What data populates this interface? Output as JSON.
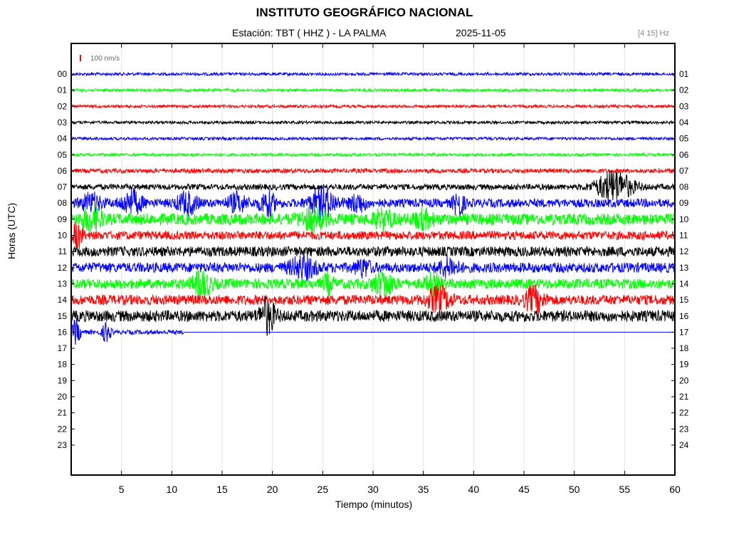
{
  "title": "INSTITUTO GEOGRÁFICO NACIONAL",
  "subtitle_station": "Estación:  TBT ( HHZ ) - LA PALMA",
  "subtitle_date": "2025-11-05",
  "filter_band": "[4 15] Hz",
  "scale_label": "100 nm/s",
  "chart_data": {
    "type": "line",
    "title": "INSTITUTO GEOGRÁFICO NACIONAL",
    "xlabel": "Tiempo (minutos)",
    "ylabel": "Horas (UTC)",
    "xlim": [
      0,
      60
    ],
    "x_ticks": [
      "5",
      "10",
      "15",
      "20",
      "25",
      "30",
      "35",
      "40",
      "45",
      "50",
      "55",
      "60"
    ],
    "y_ticks_left": [
      "00",
      "01",
      "02",
      "03",
      "04",
      "05",
      "06",
      "07",
      "08",
      "09",
      "10",
      "11",
      "12",
      "13",
      "14",
      "15",
      "16",
      "17",
      "18",
      "19",
      "20",
      "21",
      "22",
      "23"
    ],
    "y_ticks_right": [
      "01",
      "02",
      "03",
      "04",
      "05",
      "06",
      "07",
      "08",
      "09",
      "10",
      "11",
      "12",
      "13",
      "14",
      "15",
      "16",
      "17",
      "18",
      "19",
      "20",
      "21",
      "22",
      "23",
      "24"
    ],
    "grid": true,
    "color_cycle": [
      "#0000ff",
      "#00ff00",
      "#ff0000",
      "#000000"
    ],
    "scale_color": "#ff0000",
    "traces": [
      {
        "hour": "00",
        "color": "#0000ff",
        "noise": 2,
        "end_min": 60,
        "bursts": []
      },
      {
        "hour": "01",
        "color": "#00ff00",
        "noise": 2,
        "end_min": 60,
        "bursts": []
      },
      {
        "hour": "02",
        "color": "#ff0000",
        "noise": 2,
        "end_min": 60,
        "bursts": []
      },
      {
        "hour": "03",
        "color": "#000000",
        "noise": 2,
        "end_min": 60,
        "bursts": []
      },
      {
        "hour": "04",
        "color": "#0000ff",
        "noise": 2,
        "end_min": 60,
        "bursts": []
      },
      {
        "hour": "05",
        "color": "#00ff00",
        "noise": 2,
        "end_min": 60,
        "bursts": []
      },
      {
        "hour": "06",
        "color": "#ff0000",
        "noise": 3,
        "end_min": 60,
        "bursts": []
      },
      {
        "hour": "07",
        "color": "#000000",
        "noise": 4,
        "end_min": 60,
        "bursts": [
          {
            "t": 54,
            "amp": 22,
            "width": 3.5
          }
        ]
      },
      {
        "hour": "08",
        "color": "#0000ff",
        "noise": 6,
        "end_min": 60,
        "bursts": [
          {
            "t": 2,
            "amp": 12,
            "width": 2
          },
          {
            "t": 6,
            "amp": 16,
            "width": 2
          },
          {
            "t": 11.5,
            "amp": 14,
            "width": 2
          },
          {
            "t": 16.5,
            "amp": 12,
            "width": 1.8
          },
          {
            "t": 19.5,
            "amp": 16,
            "width": 1.5
          },
          {
            "t": 25,
            "amp": 20,
            "width": 2.5
          },
          {
            "t": 28.5,
            "amp": 12,
            "width": 1.5
          },
          {
            "t": 38.5,
            "amp": 18,
            "width": 1
          }
        ]
      },
      {
        "hour": "09",
        "color": "#00ff00",
        "noise": 8,
        "end_min": 60,
        "bursts": [
          {
            "t": 2,
            "amp": 14,
            "width": 2
          },
          {
            "t": 24,
            "amp": 12,
            "width": 2.5
          },
          {
            "t": 31,
            "amp": 10,
            "width": 2
          },
          {
            "t": 35,
            "amp": 10,
            "width": 2
          }
        ]
      },
      {
        "hour": "10",
        "color": "#ff0000",
        "noise": 6,
        "end_min": 60,
        "bursts": [
          {
            "t": 0.6,
            "amp": 16,
            "width": 1
          }
        ]
      },
      {
        "hour": "11",
        "color": "#000000",
        "noise": 7,
        "end_min": 60,
        "bursts": []
      },
      {
        "hour": "12",
        "color": "#0000ff",
        "noise": 7,
        "end_min": 60,
        "bursts": [
          {
            "t": 23,
            "amp": 14,
            "width": 2.5
          },
          {
            "t": 29,
            "amp": 10,
            "width": 1.5
          },
          {
            "t": 37.5,
            "amp": 12,
            "width": 1.8
          }
        ]
      },
      {
        "hour": "13",
        "color": "#00ff00",
        "noise": 7,
        "end_min": 60,
        "bursts": [
          {
            "t": 13,
            "amp": 16,
            "width": 1.8
          },
          {
            "t": 25.5,
            "amp": 12,
            "width": 1
          },
          {
            "t": 31,
            "amp": 16,
            "width": 2
          },
          {
            "t": 36,
            "amp": 12,
            "width": 1.5
          }
        ]
      },
      {
        "hour": "14",
        "color": "#ff0000",
        "noise": 7,
        "end_min": 60,
        "bursts": [
          {
            "t": 36.5,
            "amp": 16,
            "width": 2.2
          },
          {
            "t": 46,
            "amp": 16,
            "width": 1.8
          }
        ]
      },
      {
        "hour": "15",
        "color": "#000000",
        "noise": 8,
        "end_min": 60,
        "bursts": [
          {
            "t": 19.5,
            "amp": 22,
            "width": 1.5
          }
        ]
      },
      {
        "hour": "16",
        "color": "#0000ff",
        "noise": 3,
        "end_min": 11.2,
        "bursts": [
          {
            "t": 0.5,
            "amp": 18,
            "width": 0.8
          },
          {
            "t": 3.5,
            "amp": 14,
            "width": 0.8
          }
        ]
      }
    ]
  }
}
